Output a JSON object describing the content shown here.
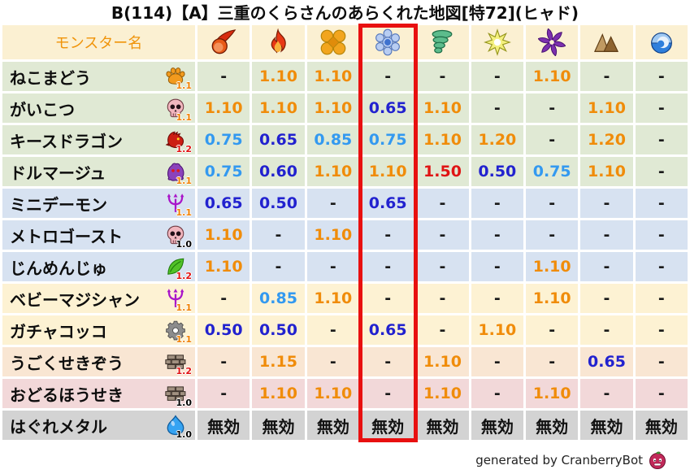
{
  "chart_data": {
    "type": "table",
    "title": "B(114)【A】三重のくらさんのあらくれた地図[特72](ヒャド)",
    "name_column_header": "モンスター名",
    "element_columns": [
      "fireball-icon",
      "flame-icon",
      "cross-burst-icon",
      "snowflake-icon",
      "tornado-icon",
      "star-burst-icon",
      "pinwheel-icon",
      "mountain-icon",
      "wave-icon"
    ],
    "highlighted_element_index": 3,
    "rows": [
      {
        "name": "ねこまどう",
        "family_icon": "paw-icon",
        "multiplier": "1.1",
        "row_color": "green",
        "values": [
          "-",
          "1.10",
          "1.10",
          "-",
          "-",
          "-",
          "1.10",
          "-",
          "-"
        ]
      },
      {
        "name": "がいこつ",
        "family_icon": "skull-icon",
        "multiplier": "1.1",
        "row_color": "green",
        "values": [
          "1.10",
          "1.10",
          "1.10",
          "0.65",
          "1.10",
          "-",
          "-",
          "1.10",
          "-"
        ]
      },
      {
        "name": "キースドラゴン",
        "family_icon": "dragon-icon",
        "multiplier": "1.2",
        "row_color": "green",
        "values": [
          "0.75",
          "0.65",
          "0.85",
          "0.75",
          "1.10",
          "1.20",
          "-",
          "1.20",
          "-"
        ]
      },
      {
        "name": "ドルマージュ",
        "family_icon": "ghost-icon",
        "multiplier": "1.1",
        "row_color": "green",
        "values": [
          "0.75",
          "0.60",
          "1.10",
          "1.10",
          "1.50",
          "0.50",
          "0.75",
          "1.10",
          "-"
        ]
      },
      {
        "name": "ミニデーモン",
        "family_icon": "trident-icon",
        "multiplier": "1.1",
        "row_color": "blue",
        "values": [
          "0.65",
          "0.50",
          "-",
          "0.65",
          "-",
          "-",
          "-",
          "-",
          "-"
        ]
      },
      {
        "name": "メトロゴースト",
        "family_icon": "skull-icon",
        "multiplier": "1.0",
        "row_color": "blue",
        "values": [
          "1.10",
          "-",
          "1.10",
          "-",
          "-",
          "-",
          "-",
          "-",
          "-"
        ]
      },
      {
        "name": "じんめんじゅ",
        "family_icon": "leaf-icon",
        "multiplier": "1.2",
        "row_color": "blue",
        "values": [
          "1.10",
          "-",
          "-",
          "-",
          "-",
          "-",
          "1.10",
          "-",
          "-"
        ]
      },
      {
        "name": "ベビーマジシャン",
        "family_icon": "trident-icon",
        "multiplier": "1.1",
        "row_color": "cream",
        "values": [
          "-",
          "0.85",
          "1.10",
          "-",
          "-",
          "-",
          "1.10",
          "-",
          "-"
        ]
      },
      {
        "name": "ガチャコッコ",
        "family_icon": "gear-icon",
        "multiplier": "1.1",
        "row_color": "cream",
        "values": [
          "0.50",
          "0.50",
          "-",
          "0.65",
          "-",
          "1.10",
          "-",
          "-",
          "-"
        ]
      },
      {
        "name": "うごくせきぞう",
        "family_icon": "brick-icon",
        "multiplier": "1.2",
        "row_color": "peach",
        "values": [
          "-",
          "1.15",
          "-",
          "-",
          "1.10",
          "-",
          "-",
          "0.65",
          "-"
        ]
      },
      {
        "name": "おどるほうせき",
        "family_icon": "brick-icon",
        "multiplier": "1.0",
        "row_color": "pink",
        "values": [
          "-",
          "1.10",
          "1.10",
          "-",
          "1.10",
          "-",
          "1.10",
          "-",
          "-"
        ]
      },
      {
        "name": "はぐれメタル",
        "family_icon": "slime-icon",
        "multiplier": "1.0",
        "row_color": "gray",
        "values": [
          "無効",
          "無効",
          "無効",
          "無効",
          "無効",
          "無効",
          "無効",
          "無効",
          "無効"
        ]
      }
    ]
  },
  "footer": {
    "text": "generated by CranberryBot",
    "icon": "cranberry-bot-icon"
  },
  "colors": {
    "header_bg": "#fbf0d2",
    "header_text": "#f0940a",
    "row_green": "#e0e9d4",
    "row_blue": "#d7e2f1",
    "row_cream": "#fdf2d3",
    "row_peach": "#f9e6d3",
    "row_pink": "#f2d8d9",
    "row_gray": "#d3d3d3",
    "value_up": "#f08c0a",
    "value_down_light": "#3399f0",
    "value_down_dark": "#2222cf",
    "value_up_strong": "#e01414",
    "value_none": "#1a1a1a",
    "highlight_border": "#e81010"
  }
}
